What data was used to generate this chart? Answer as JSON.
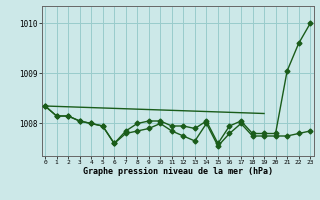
{
  "x": [
    0,
    1,
    2,
    3,
    4,
    5,
    6,
    7,
    8,
    9,
    10,
    11,
    12,
    13,
    14,
    15,
    16,
    17,
    18,
    19,
    20,
    21,
    22,
    23
  ],
  "line1_x": [
    0,
    19
  ],
  "line1_y": [
    1008.35,
    1008.2
  ],
  "line2": [
    1008.35,
    1008.15,
    1008.15,
    1008.05,
    1008.0,
    1007.95,
    1007.6,
    1007.8,
    1007.85,
    1007.9,
    1008.0,
    1007.85,
    1007.75,
    1007.65,
    1008.0,
    1007.55,
    1007.8,
    1008.0,
    1007.75,
    1007.75,
    1007.75,
    1007.75,
    1007.8,
    1007.85
  ],
  "line3": [
    1008.35,
    1008.15,
    1008.15,
    1008.05,
    1008.0,
    1007.95,
    1007.6,
    1007.85,
    1008.0,
    1008.05,
    1008.05,
    1007.95,
    1007.95,
    1007.9,
    1008.05,
    1007.6,
    1007.95,
    1008.05,
    1007.8,
    1007.8,
    1007.8,
    1009.05,
    1009.6,
    1010.0
  ],
  "background_color": "#cce8e8",
  "grid_color": "#99cccc",
  "line_color": "#1a5c1a",
  "xlabel": "Graphe pression niveau de la mer (hPa)",
  "ylim_min": 1007.35,
  "ylim_max": 1010.35,
  "yticks": [
    1008,
    1009,
    1010
  ],
  "xticks": [
    0,
    1,
    2,
    3,
    4,
    5,
    6,
    7,
    8,
    9,
    10,
    11,
    12,
    13,
    14,
    15,
    16,
    17,
    18,
    19,
    20,
    21,
    22,
    23
  ],
  "marker": "D",
  "markersize": 2.5,
  "linewidth": 1.0,
  "figsize": [
    3.2,
    2.0
  ],
  "dpi": 100
}
